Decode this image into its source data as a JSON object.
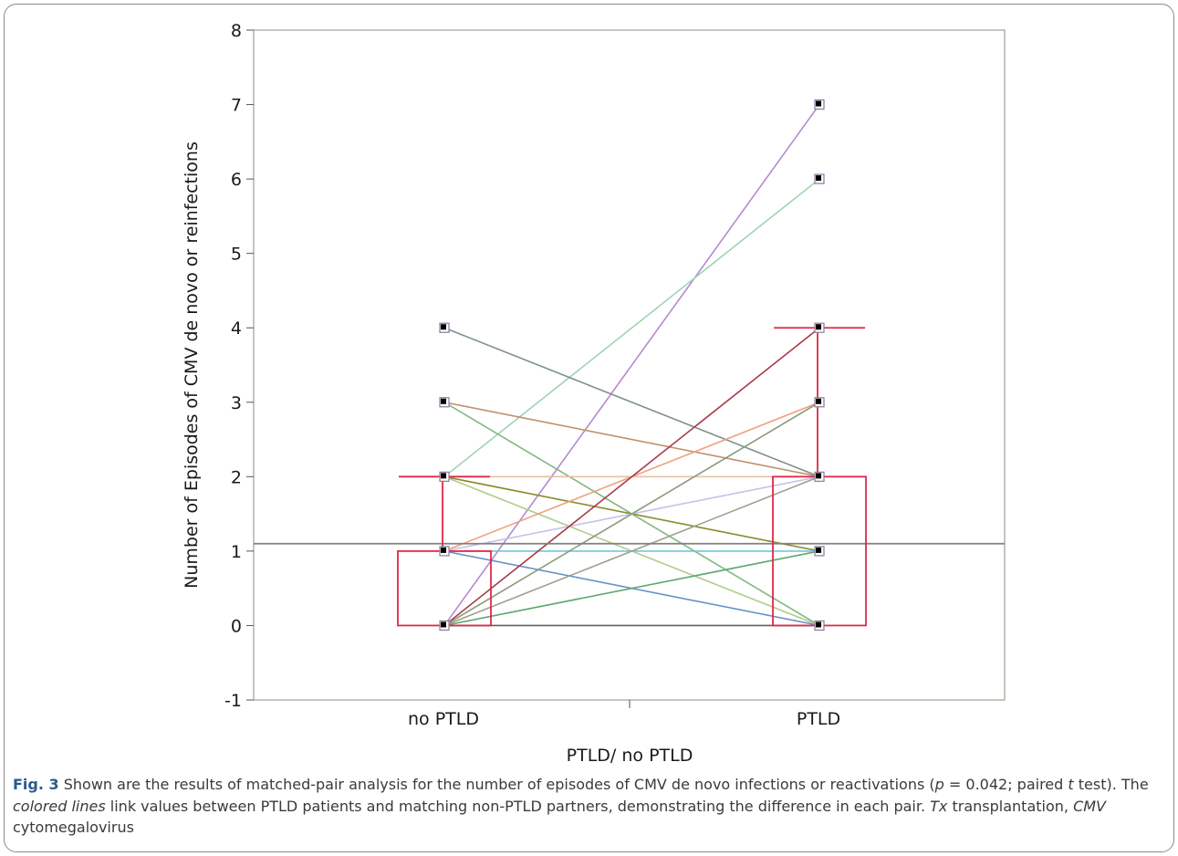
{
  "caption": {
    "label": "Fig. 3",
    "seg1": " Shown are the results of matched-pair analysis for the number of episodes of CMV de novo infections or reactivations (",
    "p_symbol": "p",
    "seg2": " = 0.042; paired ",
    "t_symbol": "t",
    "seg3": " test). The ",
    "colored_lines": "colored lines",
    "seg4": " link values between PTLD patients and matching non-PTLD partners, demonstrating the difference in each pair. ",
    "tx_abbr": "Tx",
    "seg5": " transplantation, ",
    "cmv_abbr": "CMV",
    "seg6": " cytomegalovirus"
  },
  "chart_data": {
    "type": "scatter",
    "subtype": "matched-pair plot with box plots",
    "title": "",
    "xlabel": "PTLD/ no PTLD",
    "ylabel": "Number of Episodes of CMV de novo or reinfections",
    "categories": [
      "no PTLD",
      "PTLD"
    ],
    "ylim": [
      -1,
      8
    ],
    "yticks": [
      -1,
      0,
      1,
      2,
      3,
      4,
      5,
      6,
      7,
      8
    ],
    "grid": false,
    "reference_line": {
      "y": 1.1,
      "color": "#808080"
    },
    "pairs": [
      {
        "no_ptld": 0,
        "ptld": 7,
        "color": "#b58ad0"
      },
      {
        "no_ptld": 2,
        "ptld": 6,
        "color": "#9ed4b4"
      },
      {
        "no_ptld": 4,
        "ptld": 2,
        "color": "#7f918c"
      },
      {
        "no_ptld": 3,
        "ptld": 2,
        "color": "#c0906a"
      },
      {
        "no_ptld": 3,
        "ptld": 0,
        "color": "#80b880"
      },
      {
        "no_ptld": 2,
        "ptld": 2,
        "color": "#e8c0a0"
      },
      {
        "no_ptld": 2,
        "ptld": 1,
        "color": "#8a8a2e"
      },
      {
        "no_ptld": 2,
        "ptld": 0,
        "color": "#b0cc8a"
      },
      {
        "no_ptld": 1,
        "ptld": 3,
        "color": "#f0a080"
      },
      {
        "no_ptld": 1,
        "ptld": 2,
        "color": "#c8c0e8"
      },
      {
        "no_ptld": 1,
        "ptld": 1,
        "color": "#70c8d8"
      },
      {
        "no_ptld": 1,
        "ptld": 0,
        "color": "#6890c8"
      },
      {
        "no_ptld": 0,
        "ptld": 4,
        "color": "#a83c48"
      },
      {
        "no_ptld": 0,
        "ptld": 3,
        "color": "#8a9a7a"
      },
      {
        "no_ptld": 0,
        "ptld": 2,
        "color": "#a0a090"
      },
      {
        "no_ptld": 0,
        "ptld": 1,
        "color": "#5ca870"
      },
      {
        "no_ptld": 0,
        "ptld": 0,
        "color": "#606060"
      }
    ],
    "boxplots": [
      {
        "category": "no PTLD",
        "q1": 0,
        "q3": 1,
        "whisker_low": 0,
        "whisker_high": 2,
        "color": "#e0284a"
      },
      {
        "category": "PTLD",
        "q1": 0,
        "q3": 2,
        "whisker_low": 0,
        "whisker_high": 4,
        "color": "#e0284a"
      }
    ],
    "points": {
      "no PTLD": [
        0,
        1,
        2,
        3,
        4
      ],
      "PTLD": [
        0,
        1,
        2,
        3,
        4,
        6,
        7
      ]
    }
  }
}
